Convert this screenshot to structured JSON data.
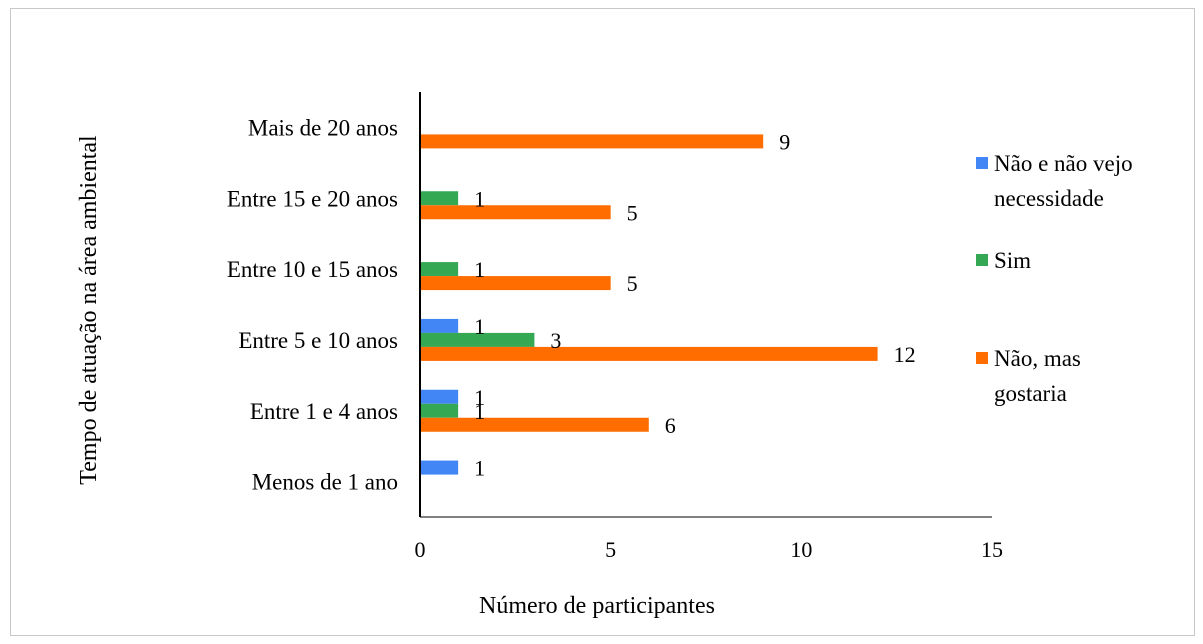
{
  "chart_data": {
    "type": "bar",
    "orientation": "horizontal",
    "title": "",
    "xlabel": "Número de participantes",
    "ylabel": "Tempo de atuação na área ambiental",
    "xlim": [
      0,
      15
    ],
    "x_ticks": [
      0,
      5,
      10,
      15
    ],
    "grid": false,
    "legend_position": "right",
    "categories": [
      "Menos de 1 ano",
      "Entre 1 e 4 anos",
      "Entre 5 e 10 anos",
      "Entre 10 e 15 anos",
      "Entre 15 e 20 anos",
      "Mais de 20 anos"
    ],
    "series": [
      {
        "name": "Não e não vejo necessidade",
        "legend_lines": [
          "Não e não vejo",
          "necessidade"
        ],
        "color": "#4285f4",
        "values": [
          1,
          1,
          1,
          null,
          null,
          null
        ]
      },
      {
        "name": "Sim",
        "legend_lines": [
          "Sim"
        ],
        "color": "#34a853",
        "values": [
          null,
          1,
          3,
          1,
          1,
          null
        ]
      },
      {
        "name": "Não, mas gostaria",
        "legend_lines": [
          "Não, mas",
          "gostaria"
        ],
        "color": "#ff6d01",
        "values": [
          null,
          6,
          12,
          5,
          5,
          9
        ]
      }
    ]
  }
}
